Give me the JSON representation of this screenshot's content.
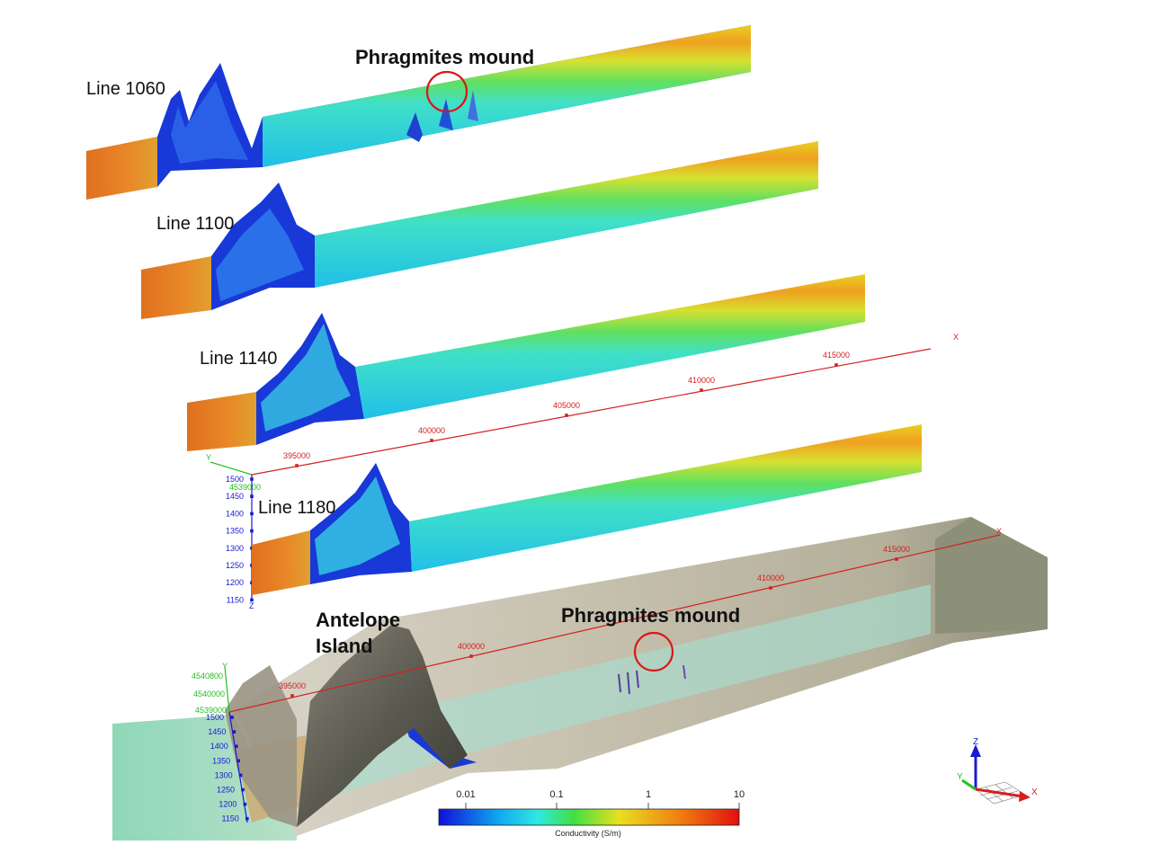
{
  "profiles": [
    {
      "label": "Line 1060"
    },
    {
      "label": "Line 1100"
    },
    {
      "label": "Line 1140"
    },
    {
      "label": "Line 1180"
    }
  ],
  "annotations": {
    "phragmites_top": "Phragmites mound",
    "phragmites_bottom": "Phragmites mound",
    "antelope_line1": "Antelope",
    "antelope_line2": "Island"
  },
  "upper_axes": {
    "x_label": "X",
    "y_label": "Y",
    "z_label": "Z",
    "x_ticks": [
      "395000",
      "400000",
      "405000",
      "410000",
      "415000"
    ],
    "y_tick": "4539000",
    "z_ticks": [
      "1500",
      "1450",
      "1400",
      "1350",
      "1300",
      "1250",
      "1200",
      "1150"
    ]
  },
  "lower_axes": {
    "x_label": "X",
    "y_label": "Y",
    "x_ticks": [
      "395000",
      "400000",
      "410000",
      "415000"
    ],
    "y_ticks": [
      "4540800",
      "4540000",
      "4539000"
    ],
    "z_ticks": [
      "1500",
      "1450",
      "1400",
      "1350",
      "1300",
      "1250",
      "1200",
      "1150"
    ]
  },
  "colorbar": {
    "ticks": [
      "0.01",
      "0.1",
      "1",
      "10"
    ],
    "title": "Conductivity (S/m)",
    "colors": [
      "#1010d8",
      "#10a8f0",
      "#30e8e0",
      "#40e040",
      "#e8e020",
      "#f08010",
      "#e01010"
    ]
  },
  "orientation": {
    "z": "Z",
    "y": "Y",
    "x": "X"
  },
  "colors": {
    "axis_red": "#d42020",
    "axis_green": "#22c022",
    "axis_blue": "#1a1ad0",
    "mound_circle": "#d81818"
  }
}
